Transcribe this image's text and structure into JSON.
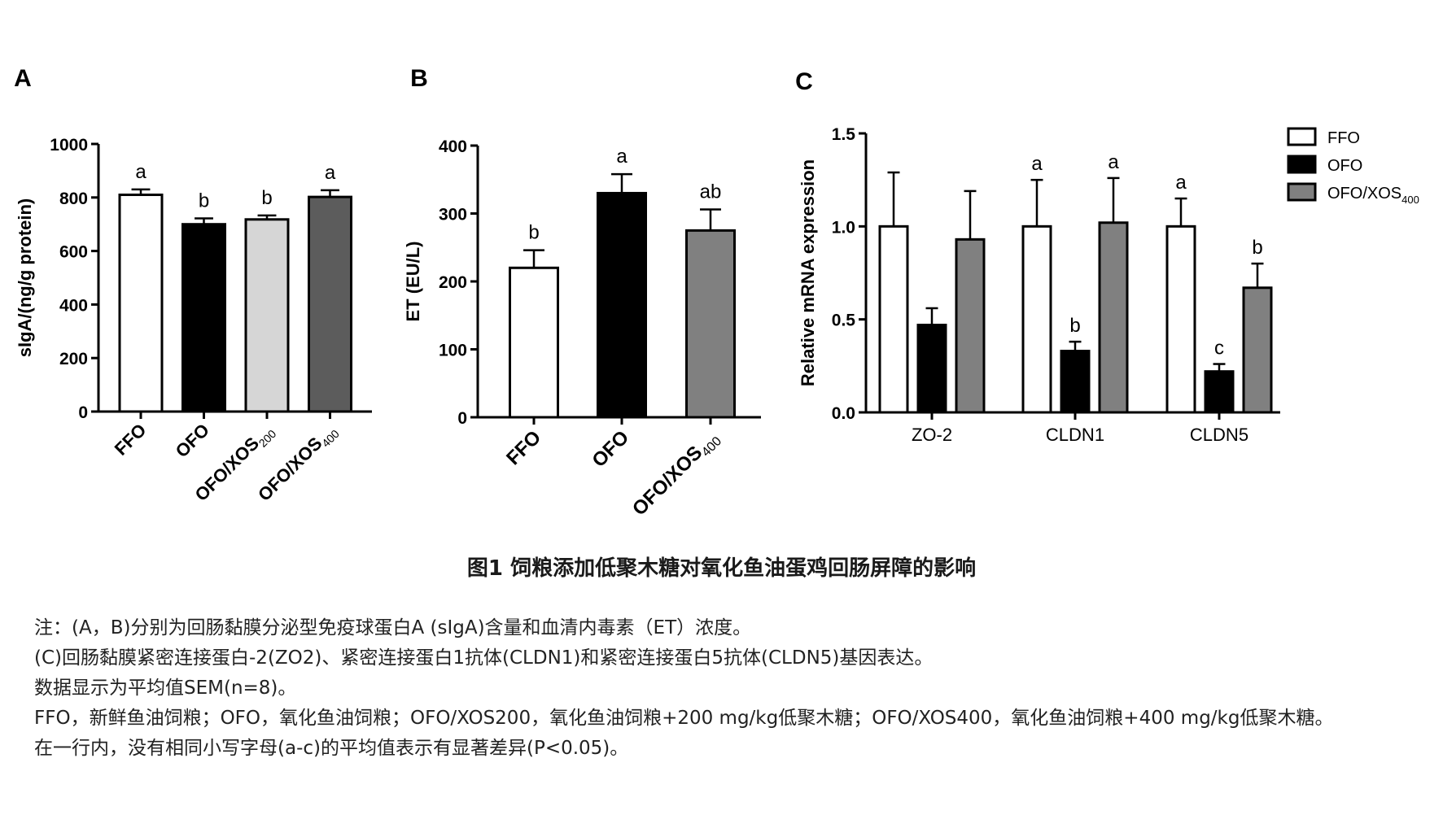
{
  "panel_letters": [
    "A",
    "B",
    "C"
  ],
  "chart_data": [
    {
      "type": "bar",
      "panel": "A",
      "categories": [
        "FFO",
        "OFO",
        "OFO/XOS",
        "OFO/XOS"
      ],
      "category_subscripts": [
        "",
        "",
        "200",
        "400"
      ],
      "values": [
        810,
        700,
        718,
        802
      ],
      "errors": [
        20,
        22,
        15,
        25
      ],
      "sig_letters": [
        "a",
        "b",
        "b",
        "a"
      ],
      "bar_colors": [
        "#ffffff",
        "#000000",
        "#d6d6d6",
        "#5c5c5c"
      ],
      "xlabel": "",
      "ylabel": "sIgA/(ng/g protein)",
      "ylim": [
        0,
        1000
      ],
      "yticks": [
        "0",
        "200",
        "400",
        "600",
        "800",
        "1000"
      ],
      "grid": false
    },
    {
      "type": "bar",
      "panel": "B",
      "categories": [
        "FFO",
        "OFO",
        "OFO/XOS"
      ],
      "category_subscripts": [
        "",
        "",
        "400"
      ],
      "values": [
        220,
        330,
        275
      ],
      "errors": [
        26,
        28,
        31
      ],
      "sig_letters": [
        "b",
        "a",
        "ab"
      ],
      "bar_colors": [
        "#ffffff",
        "#000000",
        "#808080"
      ],
      "xlabel": "",
      "ylabel": "ET (EU/L)",
      "ylim": [
        0,
        400
      ],
      "yticks": [
        "0",
        "100",
        "200",
        "300",
        "400"
      ],
      "grid": false
    },
    {
      "type": "bar",
      "panel": "C",
      "categories": [
        "ZO-2",
        "CLDN1",
        "CLDN5"
      ],
      "series": [
        {
          "name": "FFO",
          "values": [
            1.0,
            1.0,
            1.0
          ],
          "errors": [
            0.29,
            0.25,
            0.15
          ],
          "sig_letters": [
            "",
            "a",
            "a"
          ],
          "color": "#ffffff"
        },
        {
          "name": "OFO",
          "values": [
            0.47,
            0.33,
            0.22
          ],
          "errors": [
            0.09,
            0.05,
            0.04
          ],
          "sig_letters": [
            "",
            "b",
            "c"
          ],
          "color": "#000000"
        },
        {
          "name": "OFO/XOS",
          "name_subscript": "400",
          "values": [
            0.93,
            1.02,
            0.67
          ],
          "errors": [
            0.26,
            0.24,
            0.13
          ],
          "sig_letters": [
            "",
            "a",
            "b"
          ],
          "color": "#808080"
        }
      ],
      "xlabel": "",
      "ylabel": "Relative mRNA expression",
      "ylim": [
        0,
        1.5
      ],
      "yticks": [
        "0.0",
        "0.5",
        "1.0",
        "1.5"
      ],
      "legend_position": "top-right",
      "grid": false
    }
  ],
  "caption": "图1 饲粮添加低聚木糖对氧化鱼油蛋鸡回肠屏障的影响",
  "notes": [
    "注：(A，B)分别为回肠黏膜分泌型免疫球蛋白A (sIgA)含量和血清内毒素（ET）浓度。",
    "(C)回肠黏膜紧密连接蛋白-2(ZO2)、紧密连接蛋白1抗体(CLDN1)和紧密连接蛋白5抗体(CLDN5)基因表达。",
    "数据显示为平均值SEM(n=8)。",
    "FFO，新鲜鱼油饲粮；OFO，氧化鱼油饲粮；OFO/XOS200，氧化鱼油饲粮+200 mg/kg低聚木糖；OFO/XOS400，氧化鱼油饲粮+400 mg/kg低聚木糖。",
    "在一行内，没有相同小写字母(a-c)的平均值表示有显著差异(P<0.05)。"
  ]
}
